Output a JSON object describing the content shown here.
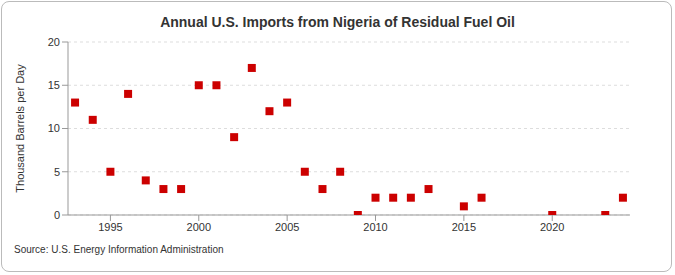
{
  "chart_data": {
    "type": "scatter",
    "title": "Annual U.S. Imports from Nigeria of Residual Fuel Oil",
    "y_label": "Thousand Barrels per Day",
    "source": "Source: U.S. Energy Information Administration",
    "x": [
      1993,
      1994,
      1995,
      1996,
      1997,
      1998,
      1999,
      2000,
      2001,
      2002,
      2003,
      2004,
      2005,
      2006,
      2007,
      2008,
      2009,
      2010,
      2011,
      2012,
      2013,
      2015,
      2016,
      2020,
      2023,
      2024
    ],
    "values": [
      13,
      11,
      5,
      14,
      4,
      3,
      3,
      15,
      15,
      9,
      17,
      12,
      13,
      5,
      3,
      5,
      0,
      2,
      2,
      2,
      3,
      1,
      2,
      0,
      0,
      2
    ],
    "color": "#cc0000",
    "marker": "square",
    "xlim": [
      1992.6,
      2024.4
    ],
    "xticks": [
      1995,
      2000,
      2005,
      2010,
      2015,
      2020
    ],
    "ylim": [
      0,
      20
    ],
    "yticks": [
      0,
      5,
      10,
      15,
      20
    ],
    "grid": true
  }
}
